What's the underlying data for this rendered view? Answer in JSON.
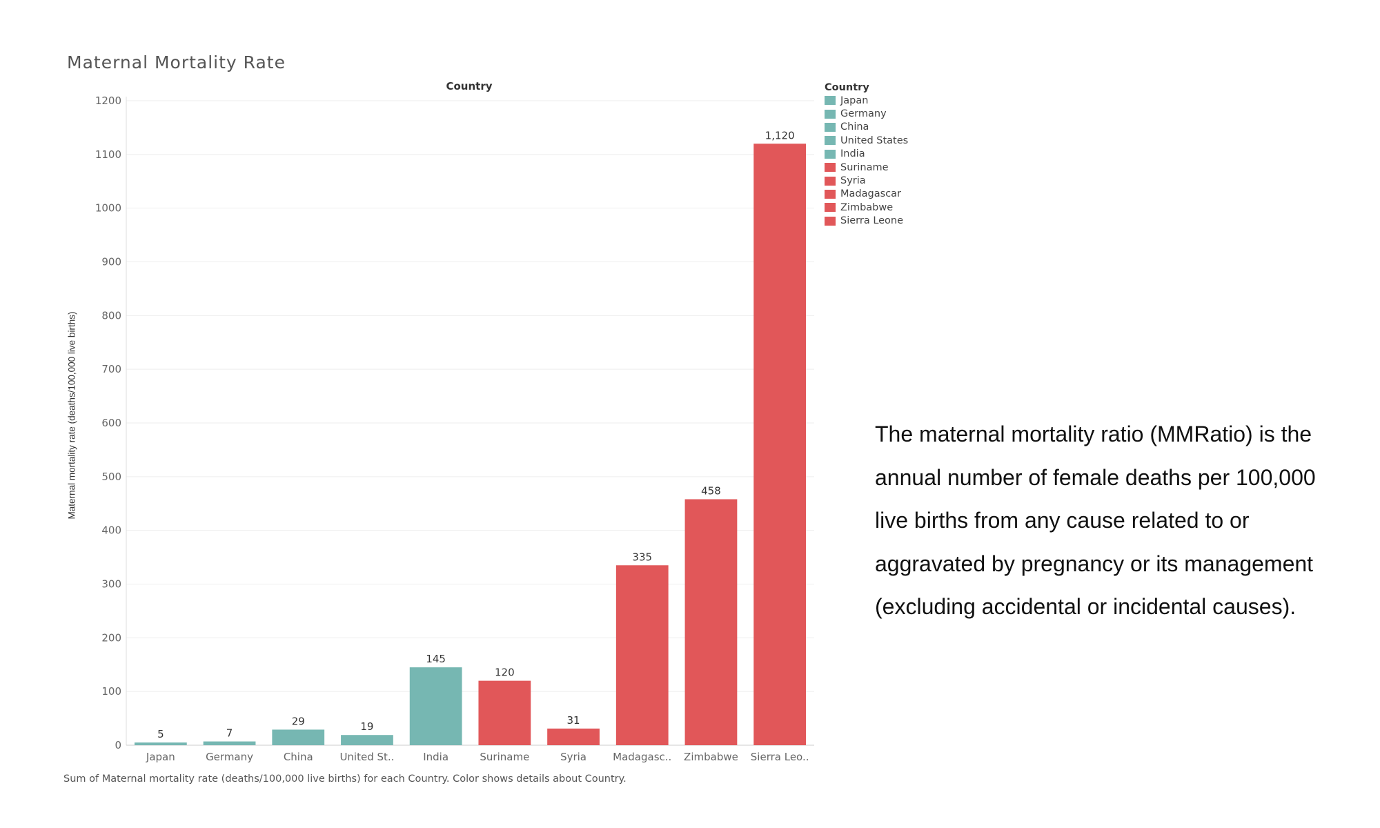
{
  "title": "Maternal Mortality Rate",
  "column_header": "Country",
  "footnote": "Sum of Maternal mortality rate (deaths/100,000 live births) for each Country.  Color shows details about Country.",
  "description": " The maternal mortality ratio (MMRatio) is the annual number of female deaths per 100,000 live births from any cause related to or aggravated by pregnancy or its management (excluding accidental or incidental causes).",
  "colors": {
    "teal": "#76b7b2",
    "red": "#e15759"
  },
  "chart_data": {
    "type": "bar",
    "title": "Maternal Mortality Rate",
    "ylabel": "Maternal mortality rate (deaths/100,000 live births)",
    "ylim": [
      0,
      1200
    ],
    "yticks": [
      "0",
      "100",
      "200",
      "300",
      "400",
      "500",
      "600",
      "700",
      "800",
      "900",
      "1000",
      "1100",
      "1200"
    ],
    "grid": true,
    "categories": [
      "Japan",
      "Germany",
      "China",
      "United St..",
      "India",
      "Suriname",
      "Syria",
      "Madagasc..",
      "Zimbabwe",
      "Sierra Leo.."
    ],
    "values": [
      5,
      7,
      29,
      19,
      145,
      120,
      31,
      335,
      458,
      1120
    ],
    "value_labels": [
      "5",
      "7",
      "29",
      "19",
      "145",
      "120",
      "31",
      "335",
      "458",
      "1,120"
    ],
    "bar_colors": [
      "#76b7b2",
      "#76b7b2",
      "#76b7b2",
      "#76b7b2",
      "#76b7b2",
      "#e15759",
      "#e15759",
      "#e15759",
      "#e15759",
      "#e15759"
    ],
    "legend": {
      "title": "Country",
      "placement": "right",
      "items": [
        {
          "label": "Japan",
          "color": "#76b7b2"
        },
        {
          "label": "Germany",
          "color": "#76b7b2"
        },
        {
          "label": "China",
          "color": "#76b7b2"
        },
        {
          "label": "United States",
          "color": "#76b7b2"
        },
        {
          "label": "India",
          "color": "#76b7b2"
        },
        {
          "label": "Suriname",
          "color": "#e15759"
        },
        {
          "label": "Syria",
          "color": "#e15759"
        },
        {
          "label": "Madagascar",
          "color": "#e15759"
        },
        {
          "label": "Zimbabwe",
          "color": "#e15759"
        },
        {
          "label": "Sierra Leone",
          "color": "#e15759"
        }
      ]
    }
  }
}
